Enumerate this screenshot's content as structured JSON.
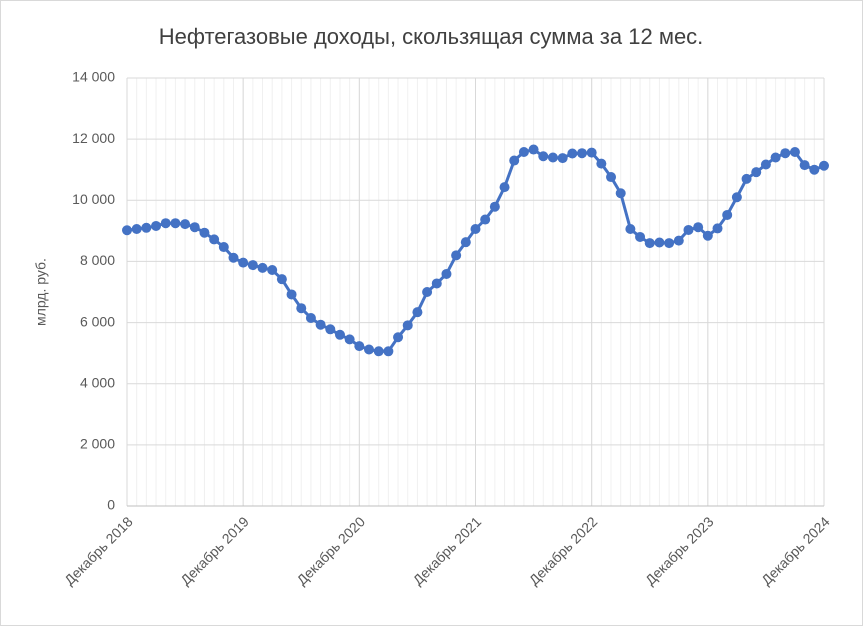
{
  "chart_data": {
    "type": "line",
    "title": "Нефтегазовые доходы, скользящая сумма за 12 мес.",
    "y_label": "млрд. руб.",
    "categories": [
      "Декабрь 2018",
      null,
      null,
      null,
      null,
      null,
      null,
      null,
      null,
      null,
      null,
      null,
      "Декабрь 2019",
      null,
      null,
      null,
      null,
      null,
      null,
      null,
      null,
      null,
      null,
      null,
      "Декабрь 2020",
      null,
      null,
      null,
      null,
      null,
      null,
      null,
      null,
      null,
      null,
      null,
      "Декабрь 2021",
      null,
      null,
      null,
      null,
      null,
      null,
      null,
      null,
      null,
      null,
      null,
      "Декабрь 2022",
      null,
      null,
      null,
      null,
      null,
      null,
      null,
      null,
      null,
      null,
      null,
      "Декабрь 2023",
      null,
      null,
      null,
      null,
      null,
      null,
      null,
      null,
      null,
      null,
      null,
      "Декабрь 2024"
    ],
    "series": [
      {
        "color": "#4472c4",
        "values": [
          9020,
          9060,
          9100,
          9160,
          9250,
          9250,
          9220,
          9120,
          8940,
          8720,
          8470,
          8120,
          7960,
          7880,
          7790,
          7720,
          7420,
          6920,
          6470,
          6150,
          5930,
          5780,
          5600,
          5450,
          5230,
          5120,
          5060,
          5060,
          5520,
          5910,
          6340,
          7000,
          7280,
          7590,
          8200,
          8630,
          9060,
          9370,
          9790,
          10430,
          11300,
          11580,
          11660,
          11440,
          11400,
          11380,
          11530,
          11540,
          11560,
          11200,
          10760,
          10230,
          9060,
          8800,
          8600,
          8620,
          8600,
          8680,
          9030,
          9120,
          8840,
          9080,
          9520,
          10100,
          10700,
          10920,
          11170,
          11400,
          11540,
          11580,
          11150,
          11000,
          11130
        ]
      }
    ],
    "ylim": [
      0,
      14000
    ],
    "yticks": [
      0,
      {
        "value": 2000,
        "label": "2 000"
      },
      {
        "value": 4000,
        "label": "4 000"
      },
      {
        "value": 6000,
        "label": "6 000"
      },
      {
        "value": 8000,
        "label": "8 000"
      },
      {
        "value": 10000,
        "label": "10 000"
      },
      {
        "value": 12000,
        "label": "12 000"
      },
      {
        "value": 14000,
        "label": "14 000"
      }
    ],
    "grid": true
  }
}
